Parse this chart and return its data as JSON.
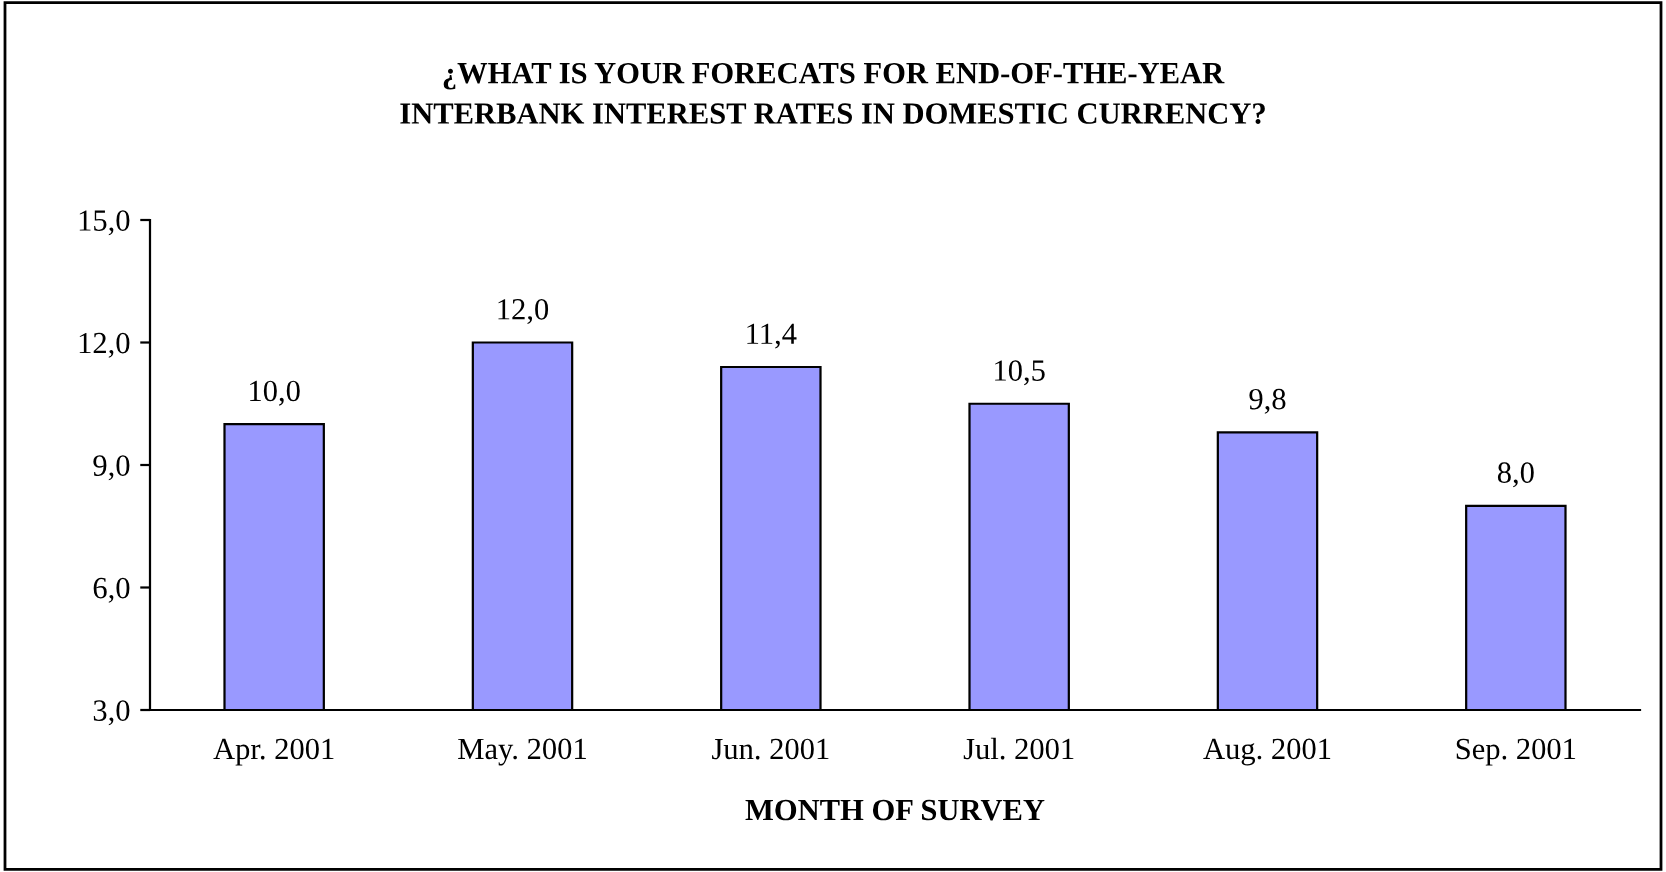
{
  "chart_data": {
    "type": "bar",
    "title": "¿WHAT IS YOUR FORECATS FOR END-OF-THE-YEAR\nINTERBANK INTEREST RATES IN DOMESTIC CURRENCY?",
    "xlabel": "MONTH OF SURVEY",
    "categories": [
      "Apr. 2001",
      "May. 2001",
      "Jun. 2001",
      "Jul. 2001",
      "Aug. 2001",
      "Sep. 2001"
    ],
    "values": [
      10.0,
      12.0,
      11.4,
      10.5,
      9.8,
      8.0
    ],
    "value_labels": [
      "10,0",
      "12,0",
      "11,4",
      "10,5",
      "9,8",
      "8,0"
    ],
    "color": "#9999ff",
    "ylim": [
      3,
      15
    ],
    "yticks": [
      {
        "value": 3,
        "label": "3,0"
      },
      {
        "value": 6,
        "label": "6,0"
      },
      {
        "value": 9,
        "label": "9,0"
      },
      {
        "value": 12,
        "label": "12,0"
      },
      {
        "value": 15,
        "label": "15,0"
      }
    ],
    "grid": false,
    "legend": false
  }
}
